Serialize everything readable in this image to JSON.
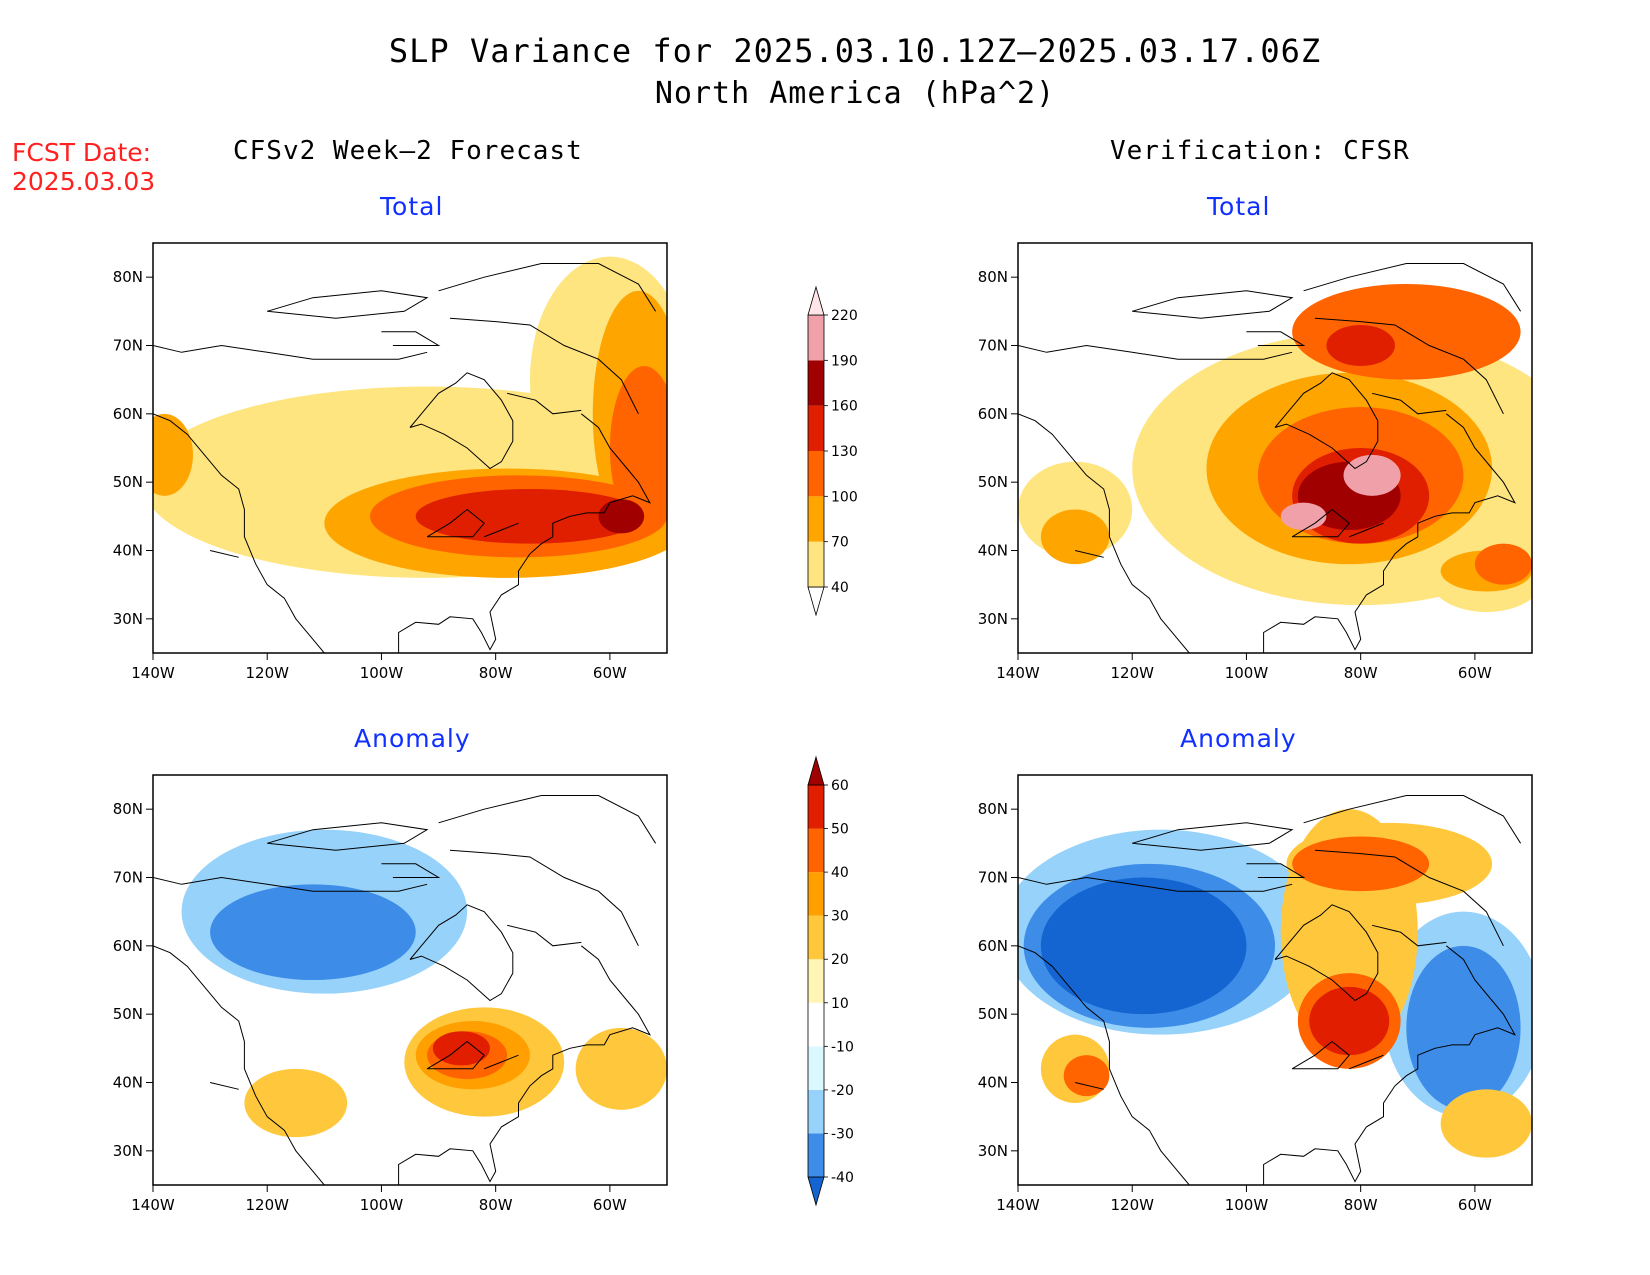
{
  "title": "SLP Variance for 2025.03.10.12Z–2025.03.17.06Z",
  "subtitle": "North America (hPa^2)",
  "fcst_label": "FCST Date:",
  "fcst_date": "2025.03.03",
  "left_column_title": "CFSv2 Week–2 Forecast",
  "right_column_title": "Verification: CFSR",
  "panel_titles": {
    "total": "Total",
    "anomaly": "Anomaly"
  },
  "axes": {
    "x_ticks": [
      "140W",
      "120W",
      "100W",
      "80W",
      "60W"
    ],
    "y_ticks": [
      "80N",
      "70N",
      "60N",
      "50N",
      "40N",
      "30N"
    ],
    "lon_range": [
      -140,
      -50
    ],
    "lat_range": [
      25,
      85
    ]
  },
  "colorbars": {
    "total": {
      "levels": [
        "40",
        "70",
        "100",
        "130",
        "160",
        "190",
        "220"
      ],
      "colors": [
        "#ffe57f",
        "#ffa500",
        "#ff6400",
        "#e01e00",
        "#a00000",
        "#f0a0a8",
        "#ffe4e8"
      ]
    },
    "anomaly": {
      "levels": [
        "-40",
        "-30",
        "-20",
        "-10",
        "10",
        "20",
        "30",
        "40",
        "50",
        "60"
      ],
      "colors": [
        "#1464d2",
        "#3c8ce8",
        "#96d2fa",
        "#dcf8ff",
        "#ffffff",
        "#fff5b4",
        "#ffc83c",
        "#ffa000",
        "#ff6400",
        "#e11e00",
        "#a00000"
      ]
    }
  },
  "panels": [
    {
      "name": "forecast-total",
      "fields": [
        {
          "level": 40,
          "blobs": [
            [
              -92,
              50,
              50,
              14
            ],
            [
              -60,
              65,
              14,
              18
            ]
          ]
        },
        {
          "level": 70,
          "blobs": [
            [
              -78,
              44,
              32,
              8
            ],
            [
              -55,
              60,
              8,
              18
            ],
            [
              -138,
              54,
              5,
              6
            ]
          ]
        },
        {
          "level": 100,
          "blobs": [
            [
              -76,
              45,
              26,
              6
            ],
            [
              -54,
              55,
              6,
              12
            ]
          ]
        },
        {
          "level": 130,
          "blobs": [
            [
              -74,
              45,
              20,
              4
            ]
          ]
        },
        {
          "level": 160,
          "blobs": [
            [
              -58,
              45,
              4,
              2.5
            ]
          ]
        }
      ]
    },
    {
      "name": "verification-total",
      "fields": [
        {
          "level": 40,
          "blobs": [
            [
              -80,
              52,
              40,
              20
            ],
            [
              -130,
              46,
              10,
              7
            ],
            [
              -58,
              36,
              10,
              5
            ]
          ]
        },
        {
          "level": 70,
          "blobs": [
            [
              -82,
              52,
              25,
              14
            ],
            [
              -130,
              42,
              6,
              4
            ],
            [
              -58,
              37,
              8,
              3
            ]
          ]
        },
        {
          "level": 100,
          "blobs": [
            [
              -80,
              51,
              18,
              10
            ],
            [
              -72,
              72,
              20,
              7
            ],
            [
              -55,
              38,
              5,
              3
            ]
          ]
        },
        {
          "level": 130,
          "blobs": [
            [
              -80,
              48,
              12,
              7
            ],
            [
              -80,
              70,
              6,
              3
            ]
          ]
        },
        {
          "level": 160,
          "blobs": [
            [
              -82,
              48,
              9,
              5
            ]
          ]
        },
        {
          "level": 190,
          "blobs": [
            [
              -78,
              51,
              5,
              3
            ],
            [
              -90,
              45,
              4,
              2
            ]
          ]
        }
      ]
    },
    {
      "name": "forecast-anomaly",
      "fields": [
        {
          "level": -20,
          "blobs": [
            [
              -110,
              65,
              25,
              12
            ]
          ]
        },
        {
          "level": -30,
          "blobs": [
            [
              -112,
              62,
              18,
              7
            ]
          ]
        },
        {
          "level": 20,
          "blobs": [
            [
              -82,
              43,
              14,
              8
            ],
            [
              -58,
              42,
              8,
              6
            ],
            [
              -115,
              37,
              9,
              5
            ]
          ]
        },
        {
          "level": 30,
          "blobs": [
            [
              -84,
              44,
              10,
              5
            ]
          ]
        },
        {
          "level": 40,
          "blobs": [
            [
              -85,
              44,
              7,
              3.5
            ]
          ]
        },
        {
          "level": 50,
          "blobs": [
            [
              -86,
              45,
              5,
              2.5
            ]
          ]
        }
      ]
    },
    {
      "name": "verification-anomaly",
      "fields": [
        {
          "level": -20,
          "blobs": [
            [
              -115,
              62,
              28,
              15
            ],
            [
              -62,
              50,
              14,
              15
            ]
          ]
        },
        {
          "level": -30,
          "blobs": [
            [
              -117,
              60,
              22,
              12
            ],
            [
              -62,
              48,
              10,
              12
            ]
          ]
        },
        {
          "level": -40,
          "blobs": [
            [
              -118,
              60,
              18,
              10
            ]
          ]
        },
        {
          "level": 20,
          "blobs": [
            [
              -82,
              62,
              12,
              18
            ],
            [
              -75,
              72,
              18,
              6
            ],
            [
              -130,
              42,
              6,
              5
            ],
            [
              -58,
              34,
              8,
              5
            ]
          ]
        },
        {
          "level": 40,
          "blobs": [
            [
              -82,
              49,
              9,
              7
            ],
            [
              -80,
              72,
              12,
              4
            ],
            [
              -128,
              41,
              4,
              3
            ]
          ]
        },
        {
          "level": 50,
          "blobs": [
            [
              -82,
              49,
              7,
              5
            ]
          ]
        }
      ]
    }
  ]
}
